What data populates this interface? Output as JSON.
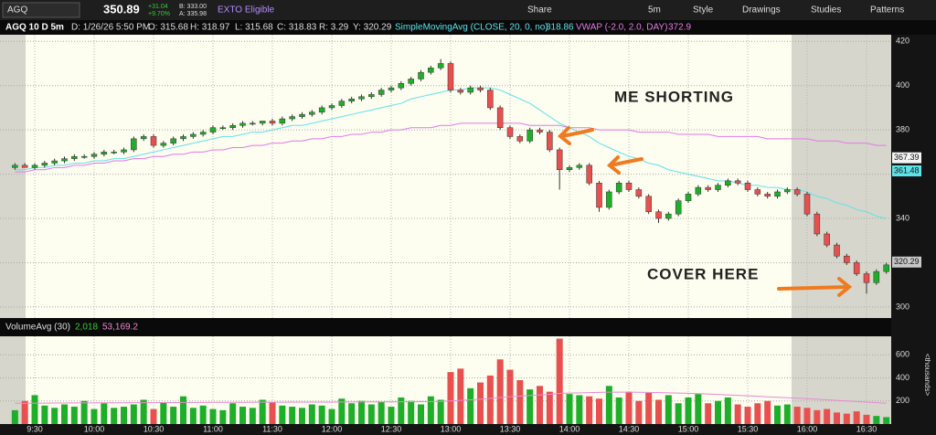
{
  "toolbar": {
    "symbol": "AGQ",
    "last": "350.89",
    "change": "+31.04",
    "change_pct": "+9.70%",
    "bid": "B: 333.00",
    "ask": "A: 335.98",
    "exto": "EXTO Eligible",
    "buttons": [
      "Share",
      "5m",
      "Style",
      "Drawings",
      "Studies",
      "Patterns"
    ]
  },
  "legend": {
    "symbol": "AGQ 10 D 5m",
    "date": "D: 1/26/26 5:50 PM",
    "open": "O: 315.68",
    "high": "H: 318.97",
    "low": "L: 315.68",
    "close": "C: 318.83",
    "range": "R: 3.29",
    "y": "Y: 320.29",
    "sma": "SimpleMovingAvg (CLOSE, 20, 0, no)",
    "sma_value": "318.86",
    "vwap": "VWAP (-2.0, 2.0, DAY)",
    "vwap_value": "372.9"
  },
  "annotations": [
    "ME SHORTING",
    "COVER HERE"
  ],
  "chart_data": [
    {
      "type": "candlestick",
      "up_color": "#1fae2a",
      "down_color": "#e85050",
      "categories": [
        null,
        null,
        "9:30",
        null,
        null,
        null,
        null,
        null,
        "10:00",
        null,
        null,
        null,
        null,
        null,
        "10:30",
        null,
        null,
        null,
        null,
        null,
        "11:00",
        null,
        null,
        null,
        null,
        null,
        "11:30",
        null,
        null,
        null,
        null,
        null,
        "12:00",
        null,
        null,
        null,
        null,
        null,
        "12:30",
        null,
        null,
        null,
        null,
        null,
        "13:00",
        null,
        null,
        null,
        null,
        null,
        "13:30",
        null,
        null,
        null,
        null,
        null,
        "14:00",
        null,
        null,
        null,
        null,
        null,
        "14:30",
        null,
        null,
        null,
        null,
        null,
        "15:00",
        null,
        null,
        null,
        null,
        null,
        "15:30",
        null,
        null,
        null,
        null,
        null,
        "16:00",
        null,
        null,
        null,
        null,
        null,
        "16:30",
        null,
        null
      ],
      "open": [
        363,
        364,
        363,
        364,
        365,
        366,
        367,
        368,
        368,
        369,
        370,
        370,
        371,
        376,
        377,
        373,
        374,
        376,
        377,
        378,
        379,
        381,
        381,
        382,
        383,
        383,
        384,
        383,
        385,
        386,
        387,
        388,
        390,
        391,
        393,
        394,
        395,
        396,
        398,
        399,
        401,
        403,
        406,
        408,
        410,
        398,
        397,
        399,
        398,
        390,
        381,
        377,
        375,
        380,
        379,
        371,
        362,
        363,
        364,
        356,
        345,
        352,
        356,
        353,
        350,
        343,
        340,
        342,
        348,
        351,
        354,
        353,
        355,
        357,
        356,
        353,
        351,
        350,
        352,
        353,
        351,
        342,
        333,
        328,
        323,
        320,
        315,
        311,
        316
      ],
      "high": [
        365,
        365,
        365,
        366,
        367,
        368,
        369,
        369,
        370,
        371,
        371,
        372,
        377,
        378,
        378,
        375,
        377,
        378,
        379,
        380,
        382,
        382,
        383,
        384,
        384,
        384,
        385,
        386,
        387,
        388,
        389,
        391,
        392,
        394,
        395,
        396,
        397,
        399,
        400,
        402,
        404,
        407,
        409,
        412,
        411,
        399,
        400,
        400,
        399,
        391,
        382,
        378,
        381,
        381,
        380,
        372,
        364,
        365,
        365,
        357,
        353,
        357,
        357,
        354,
        351,
        344,
        343,
        349,
        352,
        355,
        355,
        356,
        358,
        358,
        357,
        354,
        352,
        353,
        354,
        354,
        352,
        343,
        334,
        329,
        324,
        321,
        316,
        317,
        320
      ],
      "low": [
        362,
        363,
        362,
        363,
        364,
        365,
        366,
        367,
        367,
        368,
        369,
        369,
        370,
        375,
        372,
        372,
        373,
        375,
        376,
        377,
        378,
        380,
        380,
        381,
        382,
        382,
        382,
        382,
        384,
        385,
        386,
        387,
        389,
        390,
        392,
        393,
        394,
        395,
        397,
        398,
        400,
        402,
        405,
        407,
        397,
        396,
        396,
        397,
        389,
        380,
        376,
        374,
        374,
        378,
        370,
        353,
        361,
        362,
        355,
        343,
        344,
        351,
        352,
        349,
        342,
        338,
        339,
        341,
        347,
        350,
        352,
        352,
        354,
        355,
        352,
        350,
        349,
        349,
        351,
        350,
        341,
        332,
        327,
        322,
        319,
        314,
        306,
        310,
        315
      ],
      "close": [
        364,
        363,
        364,
        365,
        366,
        367,
        368,
        368,
        369,
        370,
        370,
        371,
        376,
        377,
        373,
        374,
        376,
        377,
        378,
        379,
        381,
        381,
        382,
        383,
        383,
        384,
        383,
        385,
        386,
        387,
        388,
        390,
        391,
        393,
        394,
        395,
        396,
        398,
        399,
        401,
        403,
        406,
        408,
        410,
        398,
        397,
        399,
        398,
        390,
        381,
        377,
        375,
        380,
        379,
        371,
        362,
        363,
        364,
        356,
        345,
        352,
        356,
        353,
        350,
        343,
        340,
        342,
        348,
        351,
        354,
        353,
        355,
        357,
        356,
        353,
        351,
        350,
        352,
        353,
        351,
        342,
        333,
        328,
        323,
        320,
        315,
        311,
        316,
        319
      ],
      "series": [
        {
          "name": "SimpleMovingAvg (CLOSE, 20, 0, no)",
          "color": "#5fe3ea",
          "values": [
            362,
            362,
            363,
            363,
            364,
            364,
            365,
            365,
            366,
            366,
            367,
            367,
            368,
            369,
            370,
            371,
            372,
            373,
            374,
            375,
            376,
            377,
            377,
            378,
            379,
            379,
            380,
            381,
            382,
            382,
            383,
            384,
            385,
            386,
            387,
            388,
            389,
            390,
            391,
            392,
            394,
            395,
            396,
            397,
            398,
            398,
            399,
            399,
            399,
            398,
            396,
            394,
            392,
            389,
            386,
            383,
            381,
            379,
            377,
            374,
            372,
            370,
            368,
            367,
            365,
            364,
            362,
            361,
            360,
            359,
            358,
            357,
            357,
            356,
            355,
            355,
            354,
            354,
            353,
            353,
            352,
            350,
            349,
            347,
            346,
            344,
            343,
            341,
            340
          ]
        },
        {
          "name": "VWAP (-2.0, 2.0, DAY)",
          "color": "#e27ae6",
          "values": [
            361,
            361,
            362,
            362,
            363,
            363,
            364,
            364,
            365,
            365,
            366,
            366,
            367,
            367,
            368,
            368,
            369,
            369,
            370,
            370,
            371,
            371,
            372,
            372,
            373,
            373,
            374,
            374,
            375,
            375,
            376,
            376,
            377,
            377,
            378,
            378,
            379,
            379,
            380,
            380,
            381,
            381,
            381,
            382,
            382,
            383,
            383,
            383,
            383,
            383,
            383,
            383,
            382,
            382,
            382,
            382,
            381,
            381,
            381,
            380,
            380,
            380,
            380,
            379,
            379,
            379,
            379,
            378,
            378,
            378,
            378,
            377,
            377,
            377,
            377,
            377,
            376,
            376,
            376,
            376,
            376,
            375,
            375,
            375,
            374,
            374,
            374,
            373,
            373
          ]
        }
      ],
      "price_labels": [
        {
          "value": 367.39,
          "color": "#f4f4f4"
        },
        {
          "value": 361.48,
          "color": "#5fe3ea"
        },
        {
          "value": 320.29,
          "color": "#c8c8c8"
        }
      ],
      "ylim": [
        295,
        423
      ],
      "yticks": [
        300,
        320,
        340,
        360,
        380,
        400,
        420
      ],
      "grid": true
    },
    {
      "type": "bar",
      "title": "VolumeAvg (30)",
      "value_text": "2,018",
      "avg_text": "53,169.2",
      "unit": "<thousands>",
      "values": [
        120,
        200,
        250,
        160,
        140,
        170,
        150,
        200,
        130,
        180,
        140,
        150,
        170,
        210,
        130,
        190,
        150,
        240,
        140,
        160,
        130,
        120,
        180,
        150,
        140,
        210,
        190,
        160,
        150,
        140,
        170,
        160,
        130,
        220,
        180,
        200,
        170,
        190,
        150,
        230,
        200,
        170,
        240,
        210,
        450,
        480,
        310,
        360,
        420,
        560,
        470,
        380,
        300,
        330,
        280,
        740,
        260,
        250,
        240,
        220,
        330,
        230,
        280,
        200,
        270,
        210,
        250,
        180,
        230,
        260,
        180,
        200,
        230,
        170,
        150,
        180,
        200,
        160,
        170,
        150,
        140,
        120,
        130,
        100,
        90,
        110,
        80,
        70,
        60
      ],
      "series": [
        {
          "name": "VolumeAvg (30)",
          "color": "#e88ad0",
          "values": [
            180,
            180,
            181,
            181,
            182,
            182,
            183,
            183,
            183,
            184,
            184,
            184,
            185,
            185,
            185,
            186,
            186,
            187,
            187,
            187,
            188,
            188,
            188,
            188,
            189,
            189,
            189,
            189,
            190,
            190,
            190,
            190,
            190,
            191,
            191,
            191,
            192,
            192,
            192,
            193,
            193,
            194,
            195,
            196,
            200,
            205,
            210,
            215,
            222,
            230,
            237,
            242,
            247,
            252,
            256,
            265,
            268,
            270,
            272,
            274,
            276,
            276,
            276,
            275,
            274,
            272,
            270,
            268,
            266,
            263,
            260,
            256,
            252,
            248,
            244,
            240,
            236,
            232,
            228,
            224,
            220,
            215,
            210,
            205,
            200,
            195,
            190,
            185,
            180
          ]
        }
      ],
      "ylim": [
        0,
        760
      ],
      "yticks": [
        200,
        400,
        600
      ],
      "grid": true
    }
  ]
}
